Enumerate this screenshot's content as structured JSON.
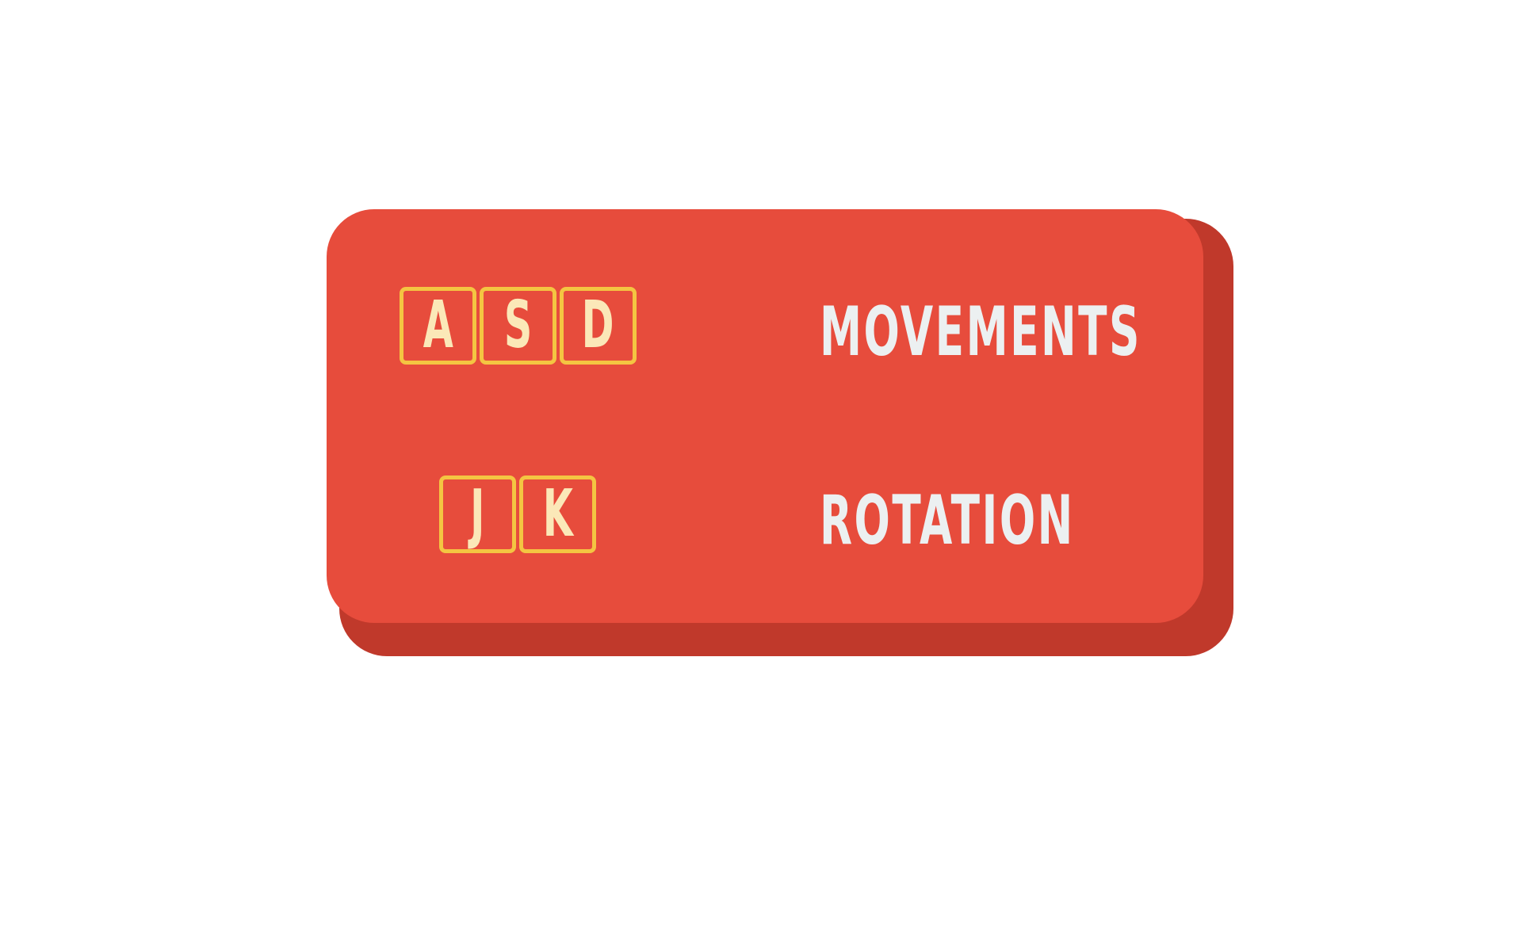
{
  "controls": [
    {
      "keys": [
        "A",
        "S",
        "D"
      ],
      "action": "MOVEMENTS"
    },
    {
      "keys": [
        "J",
        "K"
      ],
      "action": "ROTATION"
    }
  ],
  "colors": {
    "panel": "#e74c3c",
    "panel_shadow": "#c0392b",
    "key_border": "#f4c542",
    "key_text": "#fbe8b8",
    "label_text": "#ecf0f1",
    "background": "#ffffff"
  }
}
